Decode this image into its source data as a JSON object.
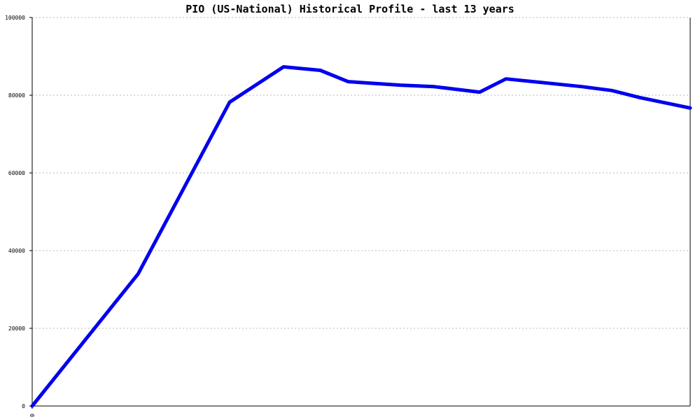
{
  "chart_data": {
    "type": "line",
    "title": "PIO (US-National) Historical Profile - last 13 years",
    "xlabel": "",
    "ylabel": "",
    "ylim": [
      0,
      100000
    ],
    "y_ticks": [
      "0",
      "20000",
      "40000",
      "60000",
      "80000",
      "100000"
    ],
    "x_ticks": [
      "0"
    ],
    "grid": true,
    "legend": "none",
    "series_color": "#0000ee",
    "series": [
      {
        "values": [
          0,
          34000,
          78200,
          87300,
          86400,
          83500,
          82600,
          82200,
          80800,
          84200,
          83200,
          82200,
          81200,
          79400,
          76700
        ],
        "x": [
          0,
          0.161,
          0.3,
          0.382,
          0.438,
          0.48,
          0.559,
          0.611,
          0.68,
          0.72,
          0.778,
          0.836,
          0.881,
          0.923,
          1.0
        ]
      }
    ]
  }
}
